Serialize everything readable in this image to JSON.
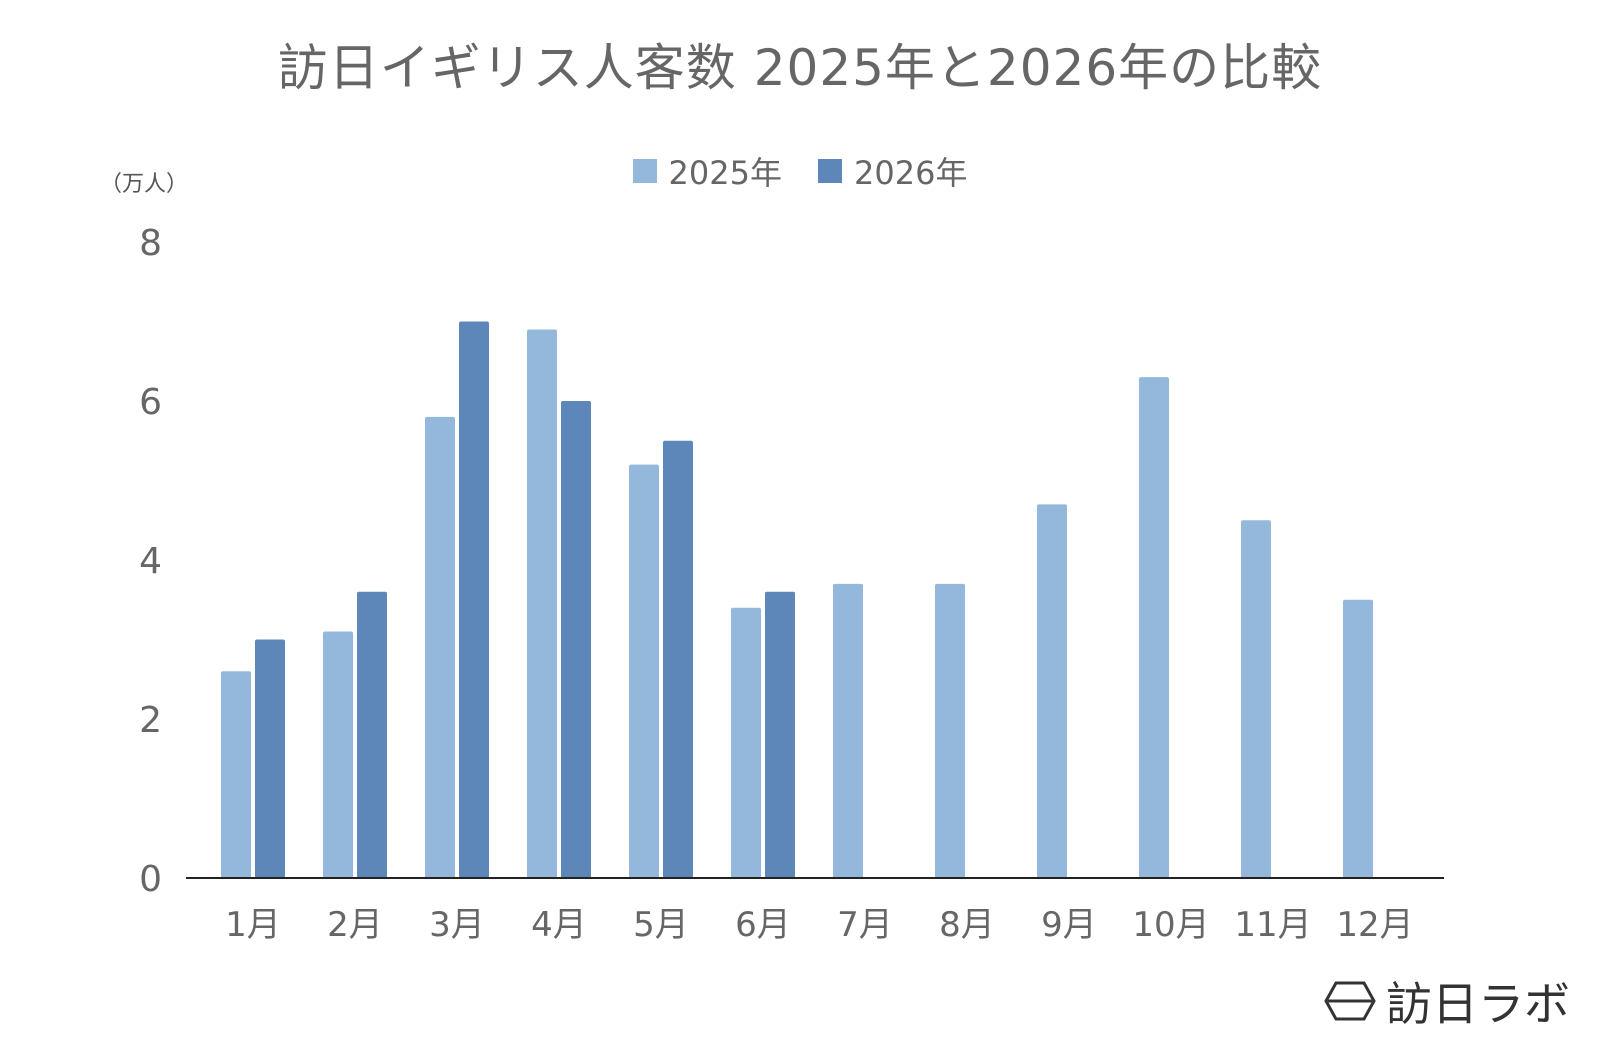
{
  "title": "訪日イギリス人客数 2025年と2026年の比較",
  "unit": "（万人）",
  "brand": {
    "name": "訪日ラボ",
    "icon": "hexagon-logo-icon"
  },
  "colors": {
    "series_2025": "#94b8db",
    "series_2026": "#5e87b9",
    "axis": "#222222",
    "text": "#666666"
  },
  "chart_data": {
    "type": "bar",
    "title": "訪日イギリス人客数 2025年と2026年の比較",
    "xlabel": "",
    "ylabel": "（万人）",
    "categories": [
      "1月",
      "2月",
      "3月",
      "4月",
      "5月",
      "6月",
      "7月",
      "8月",
      "9月",
      "10月",
      "11月",
      "12月"
    ],
    "series": [
      {
        "name": "2025年",
        "values": [
          2.6,
          3.1,
          5.8,
          6.9,
          5.2,
          3.4,
          3.7,
          3.7,
          4.7,
          6.3,
          4.5,
          3.5
        ]
      },
      {
        "name": "2026年",
        "values": [
          3.0,
          3.6,
          7.0,
          6.0,
          5.5,
          3.6,
          null,
          null,
          null,
          null,
          null,
          null
        ]
      }
    ],
    "ylim": [
      0,
      8
    ],
    "yticks": [
      0,
      2,
      4,
      6,
      8
    ],
    "grid": false,
    "legend": "top-center"
  }
}
